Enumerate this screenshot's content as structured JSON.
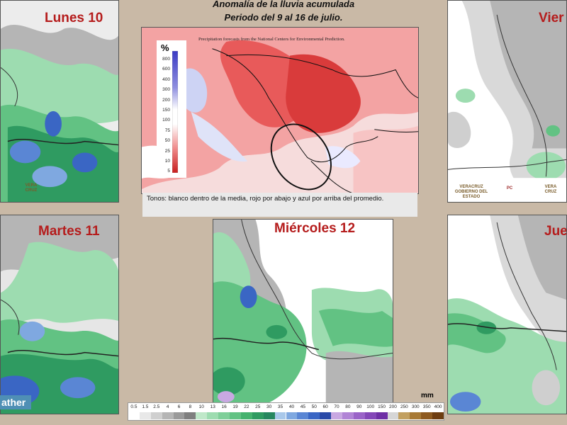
{
  "title": {
    "line1": "Anomalía de la lluvia acumulada",
    "line2": "Periodo del  9 al 16 de julio."
  },
  "panels": {
    "lunes": "Lunes 10",
    "viernes": "Vier",
    "martes": "Martes 11",
    "miercoles": "Miércoles 12",
    "jueves": "Jue"
  },
  "anomaly_map": {
    "source_note": "Precipitation forecasts from the National Centers for Environmental Prediction.",
    "percent_symbol": "%",
    "percent_ticks": [
      "800",
      "600",
      "400",
      "300",
      "200",
      "150",
      "100",
      "75",
      "50",
      "25",
      "10",
      "5"
    ],
    "caption": "Tonos: blanco dentro de la media, rojo por abajo y azul por arriba del promedio."
  },
  "precip_scale": {
    "unit": "mm",
    "values": [
      "0.5",
      "1.5",
      "2.5",
      "4",
      "6",
      "8",
      "10",
      "13",
      "16",
      "19",
      "22",
      "25",
      "30",
      "35",
      "40",
      "45",
      "50",
      "60",
      "70",
      "80",
      "90",
      "100",
      "150",
      "200",
      "250",
      "300",
      "350",
      "400"
    ],
    "colors": [
      "#ffffff",
      "#e8e8e8",
      "#cfcfcf",
      "#b5b5b5",
      "#9a9a9a",
      "#7f7f7f",
      "#bfe8c9",
      "#9ddcb0",
      "#7fcf99",
      "#62c283",
      "#45b26e",
      "#2f9b61",
      "#26875f",
      "#a9c8ea",
      "#7fa8e0",
      "#5a86d4",
      "#3a66c4",
      "#2a4aa8",
      "#c9a8e2",
      "#b184d6",
      "#9a63c8",
      "#8447b8",
      "#6e2fa5",
      "#d6d6d6",
      "#c2a060",
      "#a87a35",
      "#8e5a1f",
      "#6e3d10"
    ]
  },
  "watermark": "ather",
  "logos": {
    "veracruz": "VERA CRUZ",
    "gobierno": "VERACRUZ GOBIERNO DEL ESTADO",
    "pc": "PC"
  }
}
